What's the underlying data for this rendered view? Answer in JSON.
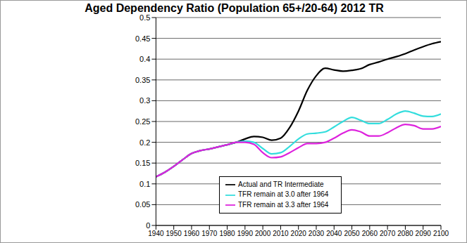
{
  "chart_data": {
    "type": "line",
    "title": "Aged Dependency Ratio (Population 65+/20-64) 2012 TR",
    "x": [
      1940,
      1945,
      1950,
      1955,
      1960,
      1965,
      1970,
      1975,
      1980,
      1985,
      1990,
      1995,
      2000,
      2005,
      2010,
      2015,
      2020,
      2025,
      2030,
      2035,
      2040,
      2045,
      2050,
      2055,
      2060,
      2065,
      2070,
      2075,
      2080,
      2085,
      2090,
      2095,
      2100
    ],
    "series": [
      {
        "name": "Actual and TR Intermediate",
        "color": "#000000",
        "values": [
          0.117,
          0.128,
          0.142,
          0.158,
          0.173,
          0.18,
          0.184,
          0.189,
          0.194,
          0.2,
          0.208,
          0.214,
          0.212,
          0.205,
          0.21,
          0.235,
          0.275,
          0.325,
          0.36,
          0.378,
          0.374,
          0.371,
          0.373,
          0.377,
          0.387,
          0.393,
          0.4,
          0.406,
          0.413,
          0.422,
          0.43,
          0.437,
          0.442
        ]
      },
      {
        "name": "TFR remain at 3.0 after 1964",
        "color": "#33DDDD",
        "values": [
          0.117,
          0.128,
          0.142,
          0.158,
          0.173,
          0.18,
          0.184,
          0.189,
          0.194,
          0.2,
          0.203,
          0.2,
          0.185,
          0.172,
          0.175,
          0.19,
          0.208,
          0.22,
          0.222,
          0.225,
          0.237,
          0.25,
          0.26,
          0.253,
          0.245,
          0.245,
          0.255,
          0.268,
          0.275,
          0.27,
          0.263,
          0.262,
          0.268
        ]
      },
      {
        "name": "TFR remain at 3.3 after 1964",
        "color": "#DD22DD",
        "values": [
          0.117,
          0.128,
          0.142,
          0.158,
          0.173,
          0.18,
          0.184,
          0.189,
          0.194,
          0.2,
          0.2,
          0.195,
          0.175,
          0.163,
          0.165,
          0.175,
          0.187,
          0.197,
          0.197,
          0.2,
          0.21,
          0.222,
          0.23,
          0.225,
          0.215,
          0.215,
          0.223,
          0.235,
          0.243,
          0.24,
          0.232,
          0.232,
          0.238
        ]
      }
    ],
    "xlim": [
      1940,
      2100
    ],
    "xticks": [
      1940,
      1950,
      1960,
      1970,
      1980,
      1990,
      2000,
      2010,
      2020,
      2030,
      2040,
      2050,
      2060,
      2070,
      2080,
      2090,
      2100
    ],
    "ylim": [
      0,
      0.5
    ],
    "yticks": [
      0,
      0.05,
      0.1,
      0.15,
      0.2,
      0.25,
      0.3,
      0.35,
      0.4,
      0.45,
      0.5
    ],
    "grid": true,
    "legend": "lower right"
  }
}
